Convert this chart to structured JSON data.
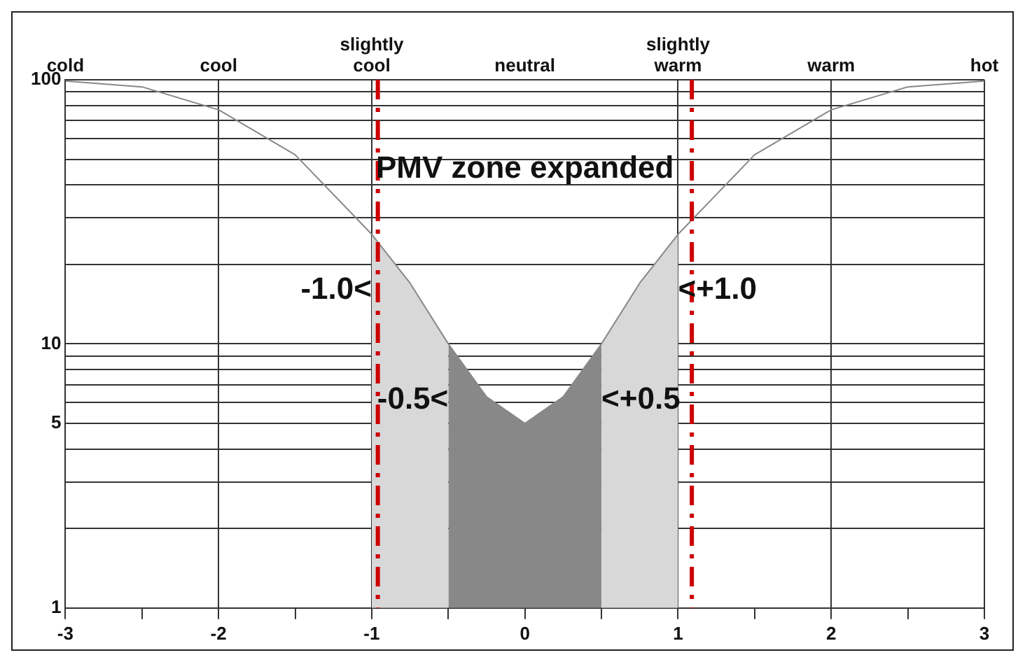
{
  "chart_data": {
    "type": "line",
    "log": "y",
    "grid": true,
    "legend": false,
    "marker": "none",
    "xlim": [
      -3,
      3
    ],
    "xticks": [
      -3,
      {
        "value": -2.5,
        "label": null
      },
      -2,
      {
        "value": -1.5,
        "label": null
      },
      -1,
      {
        "value": -0.5,
        "label": null
      },
      0,
      {
        "value": 0.5,
        "label": null
      },
      1,
      {
        "value": 1.5,
        "label": null
      },
      2,
      {
        "value": 2.5,
        "label": null
      },
      3
    ],
    "ylim": [
      1,
      100
    ],
    "yticks": [
      1,
      {
        "value": 2,
        "label": null
      },
      {
        "value": 3,
        "label": null
      },
      {
        "value": 4,
        "label": null
      },
      5,
      {
        "value": 6,
        "label": null
      },
      {
        "value": 7,
        "label": null
      },
      {
        "value": 8,
        "label": null
      },
      {
        "value": 9,
        "label": null
      },
      10,
      {
        "value": 20,
        "label": null
      },
      {
        "value": 30,
        "label": null
      },
      {
        "value": 40,
        "label": null
      },
      {
        "value": 50,
        "label": null
      },
      {
        "value": 60,
        "label": null
      },
      {
        "value": 70,
        "label": null
      },
      {
        "value": 80,
        "label": null
      },
      {
        "value": 90,
        "label": null
      },
      100
    ],
    "series": [
      {
        "type": "area",
        "color": "#d8d8d8",
        "x": [
          -1,
          -0.75,
          -0.5
        ],
        "values": [
          26,
          17,
          10
        ]
      },
      {
        "type": "area",
        "color": "#d8d8d8",
        "x": [
          0.5,
          0.75,
          1
        ],
        "values": [
          10,
          17,
          26
        ]
      },
      {
        "type": "area",
        "color": "#888888",
        "x": [
          -0.5,
          -0.25,
          0,
          0.25,
          0.5
        ],
        "values": [
          10,
          6.3,
          5,
          6.3,
          10
        ]
      },
      {
        "type": "line",
        "color": "#888888",
        "x": [
          -3,
          -2.5,
          -2,
          -1.5,
          -1,
          -0.75,
          -0.5,
          -0.25,
          0,
          0.25,
          0.5,
          0.75,
          1,
          1.5,
          2,
          2.5,
          3
        ],
        "values": [
          99,
          94,
          77,
          52,
          26,
          17,
          10,
          6.3,
          5,
          6.3,
          10,
          17,
          26,
          52,
          77,
          94,
          99
        ]
      }
    ],
    "ref_lines": [
      {
        "axis": "x",
        "value": -0.96,
        "color": "#cc0000",
        "line_style": "dashed"
      },
      {
        "axis": "x",
        "value": 1.09,
        "color": "#cc0000",
        "line_style": "dashed"
      }
    ],
    "title": "PMV zone expanded",
    "annotations": [
      "cold",
      "cool",
      "slightly cool",
      "neutral",
      "slightly warm",
      "warm",
      "hot",
      {
        "text": "-1.0<",
        "x": -1,
        "y": 26
      },
      {
        "text": "<+1.0",
        "x": 1,
        "y": 26
      },
      {
        "text": "-0.5<",
        "x": -0.5,
        "y": 10
      },
      {
        "text": "<+0.5",
        "x": 0.5,
        "y": 10
      }
    ]
  }
}
